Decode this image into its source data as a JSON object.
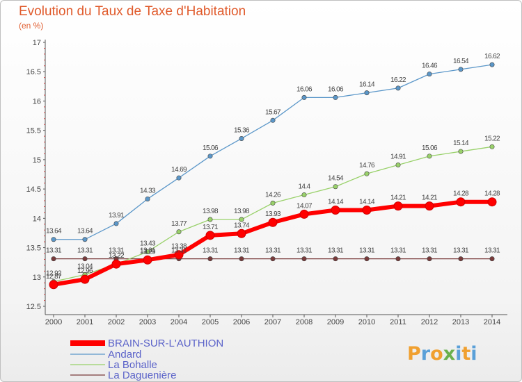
{
  "chart_data": {
    "type": "line",
    "title": "Evolution du Taux de Taxe d'Habitation",
    "subtitle": "(en %)",
    "xlabel": "",
    "ylabel": "",
    "x": [
      "2000",
      "2001",
      "2002",
      "2003",
      "2004",
      "2005",
      "2006",
      "2007",
      "2008",
      "2009",
      "2010",
      "2011",
      "2012",
      "2013",
      "2014"
    ],
    "ylim": [
      12.5,
      17
    ],
    "yticks": [
      "12.5",
      "13",
      "13.5",
      "14",
      "14.5",
      "15",
      "15.5",
      "16",
      "16.5",
      "17"
    ],
    "grid": false,
    "legend_position": "bottom-left",
    "series": [
      {
        "name": "BRAIN-SUR-L'AUTHION",
        "color": "#ff0000",
        "values": [
          12.87,
          12.96,
          13.22,
          13.29,
          13.38,
          13.71,
          13.74,
          13.93,
          14.07,
          14.14,
          14.14,
          14.21,
          14.21,
          14.28,
          14.28
        ],
        "labels": [
          "12.87",
          "12.96",
          "13.22",
          "13.29",
          "13.38",
          "13.71",
          "13.74",
          "13.93",
          "14.07",
          "14.14",
          "14.14",
          "14.21",
          "14.21",
          "14.28",
          "14.28"
        ]
      },
      {
        "name": "Andard",
        "color": "#5b97c9",
        "values": [
          13.64,
          13.64,
          13.91,
          14.33,
          14.69,
          15.06,
          15.36,
          15.67,
          16.06,
          16.06,
          16.14,
          16.22,
          16.46,
          16.54,
          16.62
        ],
        "labels": [
          "13.64",
          "13.64",
          "13.91",
          "14.33",
          "14.69",
          "15.06",
          "15.36",
          "15.67",
          "16.06",
          "16.06",
          "16.14",
          "16.22",
          "16.46",
          "16.54",
          "16.62"
        ]
      },
      {
        "name": "La Bohalle",
        "color": "#99d16a",
        "values": [
          12.92,
          13.04,
          13.22,
          13.43,
          13.77,
          13.98,
          13.98,
          14.26,
          14.4,
          14.54,
          14.76,
          14.91,
          15.06,
          15.14,
          15.22
        ],
        "labels": [
          "12.92",
          "13.04",
          "13.22",
          "13.43",
          "13.77",
          "13.98",
          "13.98",
          "14.26",
          "14.4",
          "14.54",
          "14.76",
          "14.91",
          "15.06",
          "15.14",
          "15.22"
        ]
      },
      {
        "name": "La Daguenière",
        "color": "#7a3b3b",
        "values": [
          13.31,
          13.31,
          13.31,
          13.31,
          13.31,
          13.31,
          13.31,
          13.31,
          13.31,
          13.31,
          13.31,
          13.31,
          13.31,
          13.31,
          13.31
        ],
        "labels": [
          "13.31",
          "13.31",
          "13.31",
          "13.31",
          "13.31",
          "13.31",
          "13.31",
          "13.31",
          "13.31",
          "13.31",
          "13.31",
          "13.31",
          "13.31",
          "13.31",
          "13.31"
        ]
      }
    ]
  },
  "logo": {
    "text": "Proxiti",
    "letters": [
      "P",
      "r",
      "o",
      "x",
      "i",
      "t",
      "i"
    ],
    "colors": [
      "#f0a030",
      "#5aa0d8",
      "#f0a030",
      "#6ab04c",
      "#5aa0d8",
      "#f0a030",
      "#5aa0d8"
    ]
  }
}
